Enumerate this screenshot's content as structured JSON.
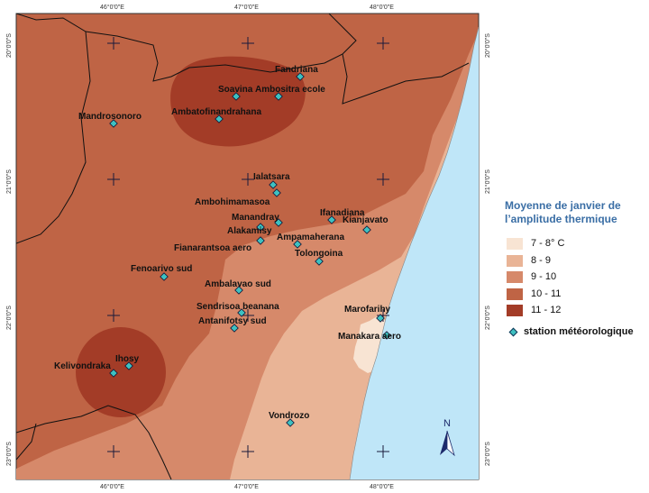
{
  "legend": {
    "title_line1": "Moyenne de janvier de",
    "title_line2": "l’amplitude thermique",
    "classes": [
      {
        "label": "7 - 8° C",
        "color": "#f8e4d3"
      },
      {
        "label": "8 - 9",
        "color": "#e9b496"
      },
      {
        "label": "9 - 10",
        "color": "#d6896a"
      },
      {
        "label": "10 - 11",
        "color": "#bf6445"
      },
      {
        "label": "11 - 12",
        "color": "#a33c27"
      }
    ],
    "station_label": "station météorologique"
  },
  "axes": {
    "top_ticks": [
      "46°0'0\"E",
      "47°0'0\"E",
      "48°0'0\"E"
    ],
    "bottom_ticks": [
      "46°0'0\"E",
      "47°0'0\"E",
      "48°0'0\"E"
    ],
    "left_ticks": [
      "20°0'0\"S",
      "21°0'0\"S",
      "22°0'0\"S",
      "23°0'0\"S"
    ],
    "right_ticks": [
      "20°0'0\"S",
      "21°0'0\"S",
      "22°0'0\"S",
      "23°0'0\"S"
    ]
  },
  "north_arrow": "N",
  "sea_color": "#bfe6f8",
  "stations": [
    {
      "name": "Fandriana"
    },
    {
      "name": "Soavina"
    },
    {
      "name": "Ambositra ecole"
    },
    {
      "name": "Ambatofinandrahana"
    },
    {
      "name": "Mandrosonoro"
    },
    {
      "name": "Ialatsara"
    },
    {
      "name": "Ambohimamasoa"
    },
    {
      "name": "Ifanadiana"
    },
    {
      "name": "Manandray"
    },
    {
      "name": "Kianjavato"
    },
    {
      "name": "Alakamisy"
    },
    {
      "name": "Ampamaherana"
    },
    {
      "name": "Fianarantsoa aero"
    },
    {
      "name": "Tolongoina"
    },
    {
      "name": "Fenoarivo sud"
    },
    {
      "name": "Ambalavao sud"
    },
    {
      "name": "Sendrisoa beanana"
    },
    {
      "name": "Marofarihy"
    },
    {
      "name": "Antanifotsy sud"
    },
    {
      "name": "Manakara aero"
    },
    {
      "name": "Ihosy"
    },
    {
      "name": "Kelivondraka"
    },
    {
      "name": "Vondrozo"
    }
  ]
}
